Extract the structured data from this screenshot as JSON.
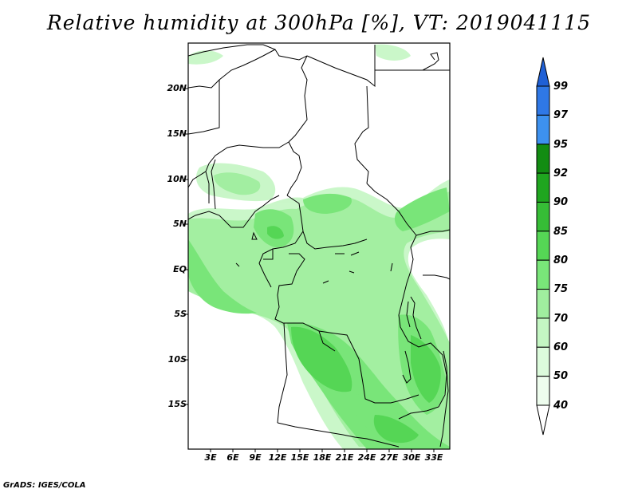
{
  "title": "Relative humidity at 300hPa [%], VT: 2019041115",
  "credit": "GrADS: IGES/COLA",
  "map": {
    "lat_labels": [
      "20N",
      "15N",
      "10N",
      "5N",
      "EQ",
      "5S",
      "10S",
      "15S"
    ],
    "lon_labels": [
      "3E",
      "6E",
      "9E",
      "12E",
      "15E",
      "18E",
      "21E",
      "24E",
      "27E",
      "30E",
      "33E"
    ]
  },
  "colorbar": {
    "labels": [
      "99",
      "97",
      "95",
      "92",
      "90",
      "85",
      "80",
      "75",
      "70",
      "60",
      "50",
      "40"
    ],
    "colors": [
      "#1f60d6",
      "#2f78e6",
      "#3d91ef",
      "#128c12",
      "#1fa61f",
      "#36bd36",
      "#55d655",
      "#79e579",
      "#a0ee9f",
      "#c4f6c3",
      "#dcfbdc",
      "#eefdee"
    ]
  }
}
